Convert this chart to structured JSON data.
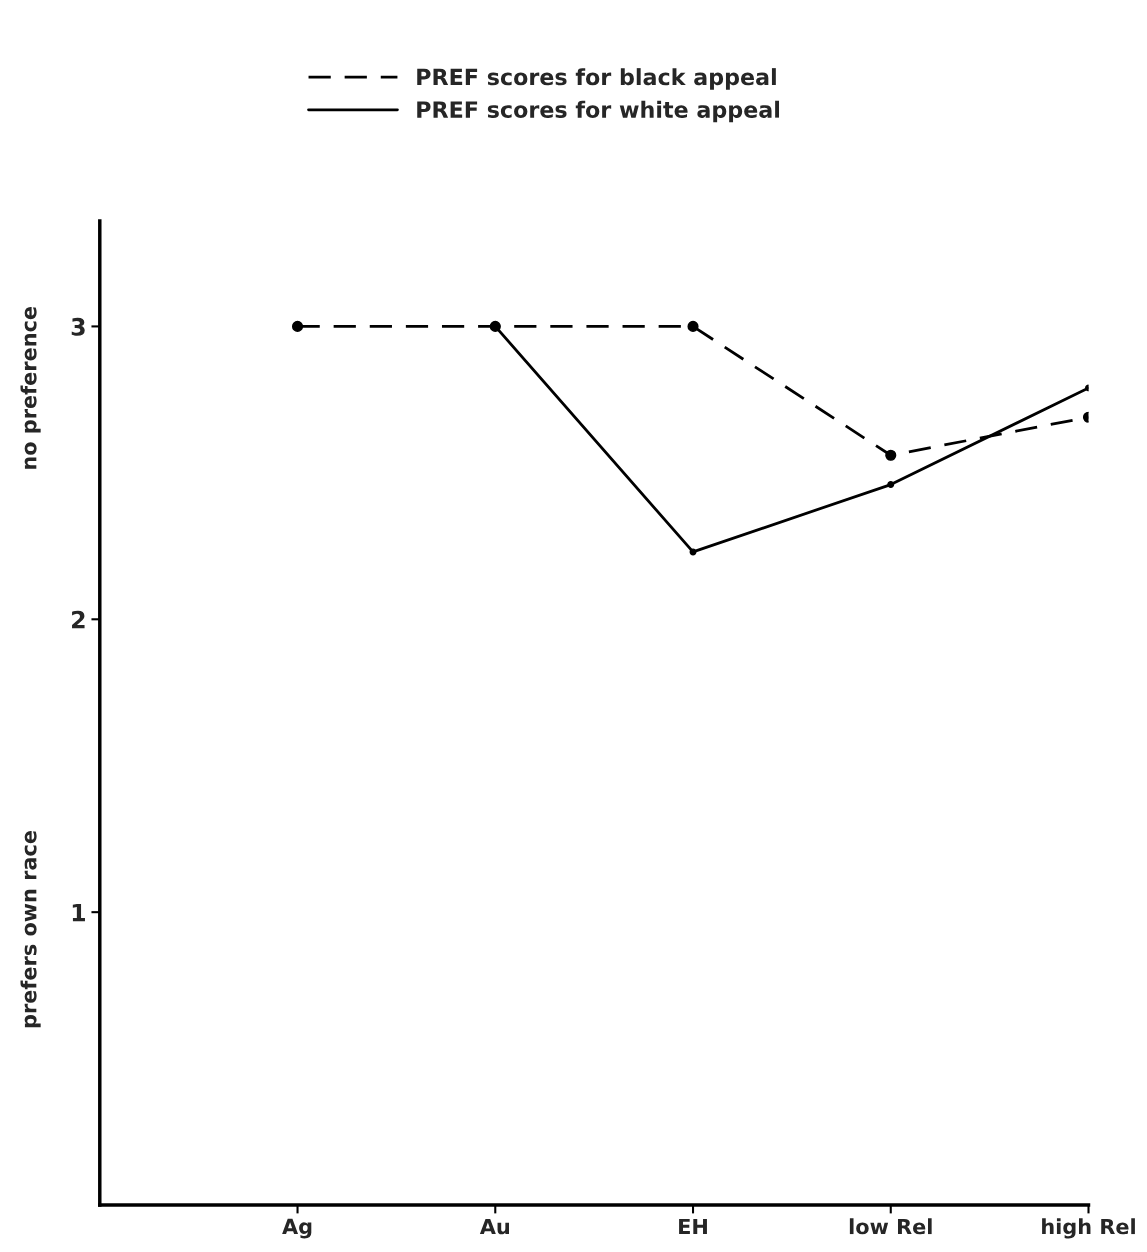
{
  "chart_data": {
    "type": "line",
    "categories": [
      "Ag",
      "Au",
      "EH",
      "low Rel",
      "high Rel"
    ],
    "series": [
      {
        "name": "PREF scores for black appeal",
        "color": "#000000",
        "line_style": "dashed",
        "values": [
          3.0,
          3.0,
          3.0,
          2.56,
          2.69
        ]
      },
      {
        "name": "PREF scores for white appeal",
        "color": "#000000",
        "line_style": "solid",
        "values": [
          null,
          3.0,
          2.23,
          2.46,
          2.79
        ]
      }
    ],
    "annotations": [
      "no preference",
      "prefers own race"
    ],
    "ylim": [
      0,
      3.36
    ],
    "yticks": [
      1,
      2,
      3
    ],
    "marker": "circle",
    "grid": false,
    "legend": "top"
  }
}
